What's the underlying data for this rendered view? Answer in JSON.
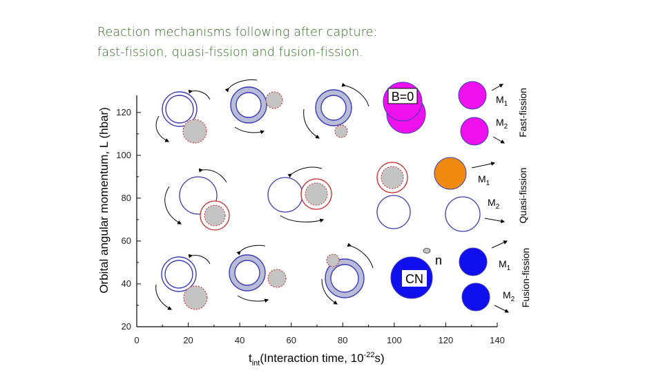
{
  "title": {
    "line1": "Reaction mechanisms following after capture:",
    "line2": "fast-fission, quasi-fission and fusion-fission."
  },
  "axes": {
    "x_label_main": "t",
    "x_label_sub": "int",
    "x_label_rest": "(Interaction time, 10",
    "x_label_sup": "-22",
    "x_label_end": "s)",
    "y_label": "Orbital angular momentum, L (hbar)",
    "x_ticks": [
      "0",
      "20",
      "40",
      "60",
      "80",
      "100",
      "120",
      "140"
    ],
    "y_ticks": [
      "20",
      "40",
      "60",
      "80",
      "100",
      "120"
    ]
  },
  "rows": {
    "fast": {
      "label": "Fast-fission",
      "tag": "B=0",
      "m1": "M",
      "m1_sub": "1",
      "m2": "M",
      "m2_sub": "2"
    },
    "quasi": {
      "label": "Quasi-fission",
      "m1": "M",
      "m1_sub": "1",
      "m2": "M",
      "m2_sub": "2"
    },
    "fusion": {
      "label": "Fusion-fission",
      "tag": "CN",
      "neutron": "n",
      "m1": "M",
      "m1_sub": "1",
      "m2": "M",
      "m2_sub": "2"
    }
  },
  "colors": {
    "title": "#2e6b1f",
    "blue_outline": "#3a3ab8",
    "ring_fill": "#b8bcd6",
    "red_outline": "#cc2a2a",
    "gray_fill": "#c4c4c4",
    "magenta": "#ee11ee",
    "orange": "#f08a10",
    "cn_blue": "#1010ee"
  }
}
